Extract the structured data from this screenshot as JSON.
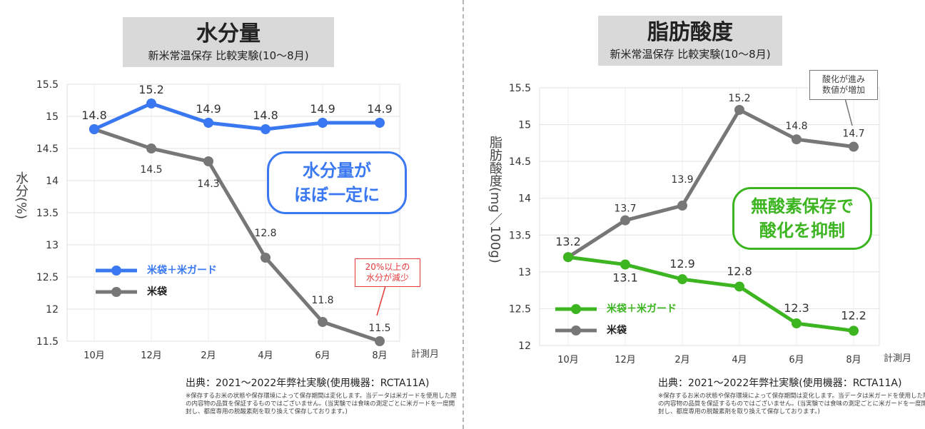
{
  "left": {
    "title": "水分量",
    "subtitle": "新米常温保存 比較実験(10〜8月)",
    "ylabel": "水分(%)",
    "callout": "水分量が\nほぼ一定に",
    "note": "20%以上の\n水分が減少",
    "source": "出典：2021〜2022年弊社実験(使用機器：RCTA11A)",
    "footnote": "※保存するお米の状態や保存環境によって保存期間は変化します。当データは米ガードを使用した際の内容物の品質を保証するものではございません。(当実験では食味の測定ごとに米ガードを一度開封し、都度専用の脱酸素剤を取り換えて保存しております。)"
  },
  "right": {
    "title": "脂肪酸度",
    "subtitle": "新米常温保存 比較実験(10〜8月)",
    "ylabel": "脂肪酸度(mg／100g)",
    "callout": "無酸素保存で\n酸化を抑制",
    "note": "酸化が進み\n数値が増加",
    "source": "出典：2021〜2022年弊社実験(使用機器：RCTA11A)",
    "footnote": "※保存するお米の状態や保存環境によって保存期間は変化します。当データは米ガードを使用した際の内容物の品質を保証するものではございません。(当実験では食味の測定ごとに米ガードを一度開封し、都度専用の脱酸素剤を取り換えて保存しております。)"
  },
  "chart_data": [
    {
      "type": "line",
      "title": "水分量",
      "subtitle": "新米常温保存 比較実験(10〜8月)",
      "xlabel": "計測月",
      "ylabel": "水分(%)",
      "categories": [
        "10月",
        "12月",
        "2月",
        "4月",
        "6月",
        "8月"
      ],
      "yticks": [
        "11.5",
        "12",
        "12.5",
        "13",
        "13.5",
        "14",
        "14.5",
        "15",
        "15.5"
      ],
      "ylim": [
        11.5,
        15.5
      ],
      "grid": true,
      "legend": "middle-left",
      "series": [
        {
          "name": "米袋＋米ガード",
          "color": "#3a78f2",
          "values": [
            14.8,
            15.2,
            14.9,
            14.8,
            14.9,
            14.9
          ],
          "labels": [
            "14.8",
            "15.2",
            "14.9",
            "14.8",
            "14.9",
            "14.9"
          ]
        },
        {
          "name": "米袋",
          "color": "#777777",
          "values": [
            14.8,
            14.5,
            14.3,
            12.8,
            11.8,
            11.5
          ],
          "labels": [
            "",
            "14.5",
            "14.3",
            "12.8",
            "11.8",
            "11.5"
          ]
        }
      ]
    },
    {
      "type": "line",
      "title": "脂肪酸度",
      "subtitle": "新米常温保存 比較実験(10〜8月)",
      "xlabel": "計測月",
      "ylabel": "脂肪酸度(mg／100g)",
      "categories": [
        "10月",
        "12月",
        "2月",
        "4月",
        "6月",
        "8月"
      ],
      "yticks": [
        "12",
        "12.5",
        "13",
        "13.5",
        "14",
        "14.5",
        "15",
        "15.5"
      ],
      "ylim": [
        12,
        15.5
      ],
      "grid": true,
      "legend": "bottom-left",
      "series": [
        {
          "name": "米袋＋米ガード",
          "color": "#3cb521",
          "values": [
            13.2,
            13.1,
            12.9,
            12.8,
            12.3,
            12.2
          ],
          "labels": [
            "13.2",
            "13.1",
            "12.9",
            "12.8",
            "12.3",
            "12.2"
          ]
        },
        {
          "name": "米袋",
          "color": "#777777",
          "values": [
            13.2,
            13.7,
            13.9,
            15.2,
            14.8,
            14.7
          ],
          "labels": [
            "",
            "13.7",
            "13.9",
            "15.2",
            "14.8",
            "14.7"
          ]
        }
      ]
    }
  ]
}
